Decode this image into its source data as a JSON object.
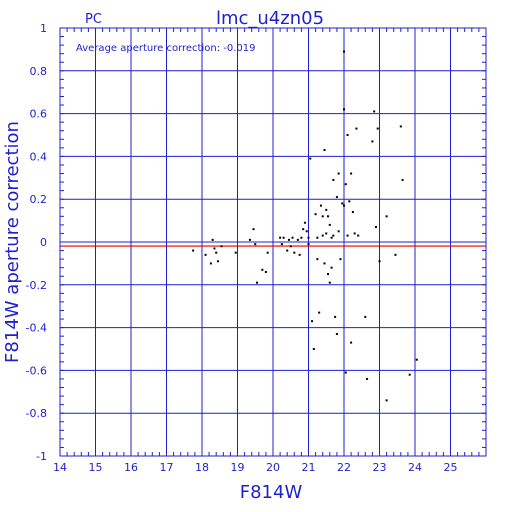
{
  "chart_data": {
    "type": "scatter",
    "title": "lmc_u4zn05",
    "corner_label": "PC",
    "annotation": "Average aperture correction:  -0.019",
    "xlabel": "F814W",
    "ylabel": "F814W aperture correction",
    "xlim": [
      14,
      26
    ],
    "ylim": [
      -1,
      1
    ],
    "x_ticks": [
      14,
      15,
      16,
      17,
      18,
      19,
      20,
      21,
      22,
      23,
      24,
      25
    ],
    "x_tick_labels": [
      "14",
      "15",
      "16",
      "17",
      "18",
      "19",
      "20",
      "21",
      "22",
      "23",
      "24",
      "25"
    ],
    "y_ticks": [
      -1,
      -0.8,
      -0.6,
      -0.4,
      -0.2,
      0,
      0.2,
      0.4,
      0.6,
      0.8,
      1
    ],
    "y_tick_labels": [
      "-1",
      "-0.8",
      "-0.6",
      "-0.4",
      "-0.2",
      "0",
      "0.2",
      "0.4",
      "0.6",
      "0.8",
      "1"
    ],
    "grid": true,
    "reference_line": {
      "y": -0.019,
      "color": "#e00000"
    },
    "colors": {
      "axes": "#1f1fd0",
      "points": "#000000"
    },
    "points": [
      [
        17.75,
        -0.04
      ],
      [
        18.1,
        -0.06
      ],
      [
        18.25,
        -0.1
      ],
      [
        18.3,
        0.01
      ],
      [
        18.35,
        -0.03
      ],
      [
        18.4,
        -0.05
      ],
      [
        18.45,
        -0.09
      ],
      [
        18.55,
        -0.02
      ],
      [
        18.95,
        -0.05
      ],
      [
        19.35,
        0.01
      ],
      [
        19.45,
        0.06
      ],
      [
        19.5,
        -0.01
      ],
      [
        19.55,
        -0.19
      ],
      [
        19.7,
        -0.13
      ],
      [
        19.8,
        -0.14
      ],
      [
        19.85,
        -0.05
      ],
      [
        20.2,
        0.02
      ],
      [
        20.25,
        -0.01
      ],
      [
        20.3,
        0.02
      ],
      [
        20.4,
        -0.04
      ],
      [
        20.45,
        0.01
      ],
      [
        20.5,
        -0.02
      ],
      [
        20.55,
        0.02
      ],
      [
        20.6,
        -0.05
      ],
      [
        20.7,
        0.01
      ],
      [
        20.75,
        -0.06
      ],
      [
        20.8,
        0.02
      ],
      [
        20.85,
        0.06
      ],
      [
        20.9,
        0.09
      ],
      [
        20.95,
        0.05
      ],
      [
        21.0,
        -0.01
      ],
      [
        21.0,
        0.02
      ],
      [
        21.05,
        0.39
      ],
      [
        21.1,
        -0.37
      ],
      [
        21.15,
        -0.5
      ],
      [
        21.2,
        0.13
      ],
      [
        21.25,
        -0.08
      ],
      [
        21.25,
        0.02
      ],
      [
        21.3,
        -0.33
      ],
      [
        21.35,
        0.17
      ],
      [
        21.4,
        0.12
      ],
      [
        21.4,
        0.03
      ],
      [
        21.45,
        0.43
      ],
      [
        21.45,
        -0.1
      ],
      [
        21.5,
        0.15
      ],
      [
        21.5,
        0.04
      ],
      [
        21.55,
        0.12
      ],
      [
        21.55,
        -0.15
      ],
      [
        21.6,
        0.08
      ],
      [
        21.6,
        -0.19
      ],
      [
        21.65,
        0.02
      ],
      [
        21.65,
        -0.12
      ],
      [
        21.7,
        0.29
      ],
      [
        21.7,
        0.03
      ],
      [
        21.75,
        -0.35
      ],
      [
        21.8,
        0.21
      ],
      [
        21.8,
        -0.43
      ],
      [
        21.85,
        0.32
      ],
      [
        21.85,
        0.05
      ],
      [
        21.9,
        -0.08
      ],
      [
        21.95,
        0.18
      ],
      [
        22.0,
        0.89
      ],
      [
        22.0,
        0.62
      ],
      [
        22.0,
        0.17
      ],
      [
        22.05,
        0.27
      ],
      [
        22.05,
        -0.61
      ],
      [
        22.1,
        0.5
      ],
      [
        22.1,
        0.03
      ],
      [
        22.15,
        0.19
      ],
      [
        22.2,
        0.32
      ],
      [
        22.2,
        -0.47
      ],
      [
        22.25,
        0.14
      ],
      [
        22.3,
        0.04
      ],
      [
        22.35,
        0.53
      ],
      [
        22.4,
        0.03
      ],
      [
        22.6,
        -0.35
      ],
      [
        22.65,
        -0.64
      ],
      [
        22.8,
        0.47
      ],
      [
        22.85,
        0.61
      ],
      [
        22.9,
        0.07
      ],
      [
        22.95,
        0.53
      ],
      [
        23.0,
        -0.09
      ],
      [
        23.2,
        0.12
      ],
      [
        23.2,
        -0.74
      ],
      [
        23.45,
        -0.06
      ],
      [
        23.6,
        0.54
      ],
      [
        23.65,
        0.29
      ],
      [
        23.85,
        -0.62
      ],
      [
        24.05,
        -0.55
      ]
    ]
  }
}
